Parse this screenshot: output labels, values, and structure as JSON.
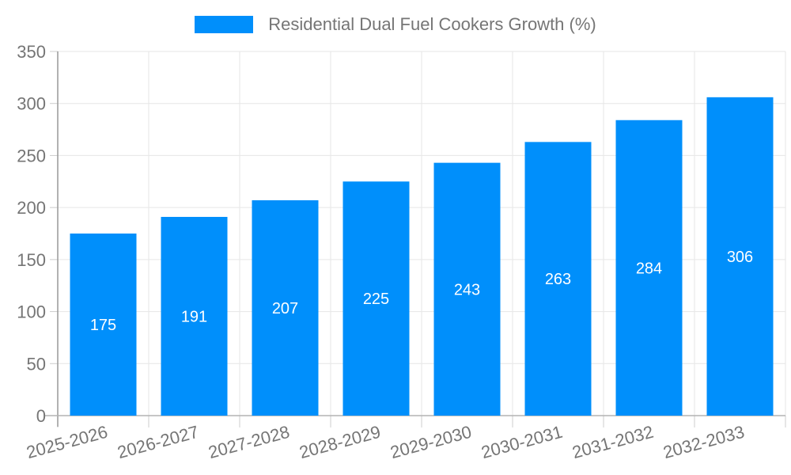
{
  "legend": {
    "label": "Residential Dual Fuel Cookers Growth (%)"
  },
  "chart_data": {
    "type": "bar",
    "title": "",
    "categories": [
      "2025-2026",
      "2026-2027",
      "2027-2028",
      "2028-2029",
      "2029-2030",
      "2030-2031",
      "2031-2032",
      "2032-2033"
    ],
    "series": [
      {
        "name": "Residential Dual Fuel Cookers Growth (%)",
        "values": [
          175,
          191,
          207,
          225,
          243,
          263,
          284,
          306
        ]
      }
    ],
    "xlabel": "",
    "ylabel": "",
    "ylim": [
      0,
      350
    ],
    "yticks": [
      0,
      50,
      100,
      150,
      200,
      250,
      300,
      350
    ],
    "grid": true,
    "legend_position": "top-center",
    "x_label_rotation_deg": -15,
    "bar_color": "#008ffb",
    "bar_label_color": "#ffffff",
    "axis_text_color": "#757575",
    "grid_color": "#e6e6e6",
    "tick_color": "#cccccc",
    "y_axis_color": "#999999",
    "x_axis_color": "#b3b3b3"
  }
}
